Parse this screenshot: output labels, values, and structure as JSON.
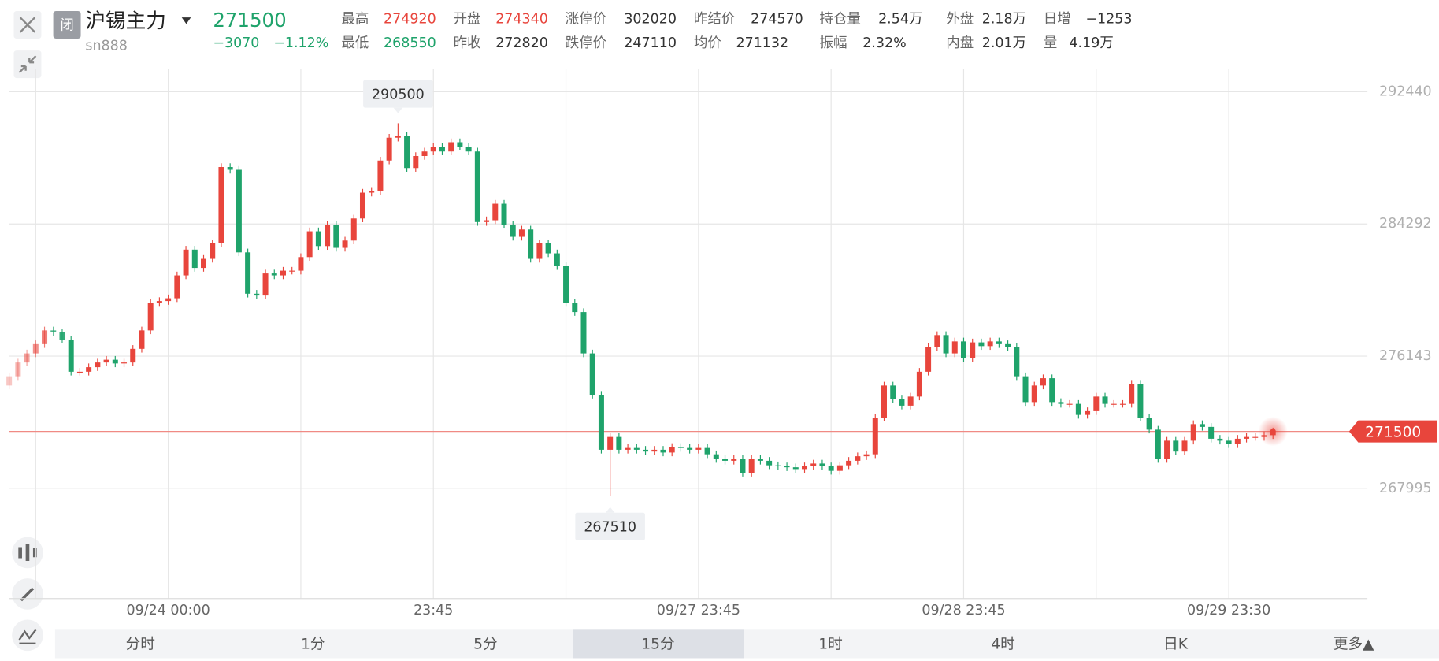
{
  "header": {
    "badge": "闭",
    "name": "沪锡主力",
    "code": "sn888",
    "change": "−3070",
    "change_pct": "−1.12%"
  },
  "stats": [
    [
      {
        "label": "最高",
        "value": "274920",
        "color": "#e8453c"
      },
      {
        "label": "开盘",
        "value": "274340",
        "color": "#e8453c"
      },
      {
        "label": "涨停价",
        "value": "302020"
      },
      {
        "label": "昨结价",
        "value": "274570"
      },
      {
        "label": "持仓量",
        "value": "2.54万"
      },
      {
        "label": "外盘",
        "value": "2.18万"
      },
      {
        "label": "日增",
        "value": "−1253"
      }
    ],
    [
      {
        "label": "最低",
        "value": "268550",
        "color": "#1fa36b"
      },
      {
        "label": "昨收",
        "value": "272820"
      },
      {
        "label": "跌停价",
        "value": "247110"
      },
      {
        "label": "均价",
        "value": "271132"
      },
      {
        "label": "振幅",
        "value": "2.32%"
      },
      {
        "label": "内盘",
        "value": "2.01万"
      },
      {
        "label": "量",
        "value": "4.19万"
      }
    ]
  ],
  "tabs": [
    "分时",
    "1分",
    "5分",
    "15分",
    "1时",
    "4时",
    "日K",
    "更多▲"
  ],
  "active_tab": 3,
  "chart_data": {
    "type": "candlestick",
    "up_color": "#e8453c",
    "down_color": "#1fa36b",
    "grid": true,
    "ylim": [
      261200,
      293850
    ],
    "yticks": [
      267995,
      276143,
      284292,
      292440
    ],
    "categories": [
      null,
      null,
      null,
      null,
      null,
      null,
      null,
      null,
      null,
      null,
      null,
      null,
      null,
      null,
      null,
      null,
      null,
      null,
      "09/24 00:00",
      null,
      null,
      null,
      null,
      null,
      null,
      null,
      null,
      null,
      null,
      null,
      null,
      null,
      null,
      null,
      null,
      null,
      null,
      null,
      null,
      null,
      null,
      null,
      null,
      null,
      null,
      null,
      null,
      null,
      "23:45",
      null,
      null,
      null,
      null,
      null,
      null,
      null,
      null,
      null,
      null,
      null,
      null,
      null,
      null,
      null,
      null,
      null,
      null,
      null,
      null,
      null,
      null,
      null,
      null,
      null,
      null,
      null,
      null,
      null,
      "09/27 23:45",
      null,
      null,
      null,
      null,
      null,
      null,
      null,
      null,
      null,
      null,
      null,
      null,
      null,
      null,
      null,
      null,
      null,
      null,
      null,
      null,
      null,
      null,
      null,
      null,
      null,
      null,
      null,
      null,
      null,
      "09/28 23:45",
      null,
      null,
      null,
      null,
      null,
      null,
      null,
      null,
      null,
      null,
      null,
      null,
      null,
      null,
      null,
      null,
      null,
      null,
      null,
      null,
      null,
      null,
      null,
      null,
      null,
      null,
      null,
      null,
      null,
      "09/29 23:30",
      null,
      null,
      null,
      null,
      null
    ],
    "open": [
      274330,
      274900,
      275750,
      276310,
      276880,
      277730,
      277610,
      277160,
      275180,
      275180,
      275460,
      275750,
      275920,
      275690,
      275750,
      276590,
      277730,
      279420,
      279540,
      279710,
      281120,
      282710,
      281580,
      282140,
      283100,
      287800,
      287630,
      282540,
      279990,
      279880,
      281240,
      281120,
      281410,
      281410,
      282250,
      283840,
      282930,
      284240,
      282820,
      283270,
      284630,
      286220,
      286330,
      288200,
      289610,
      289730,
      287740,
      288480,
      288760,
      289050,
      288760,
      289330,
      289050,
      288760,
      284410,
      284520,
      285540,
      284240,
      283500,
      283950,
      282140,
      283100,
      282480,
      281690,
      279420,
      278860,
      276310,
      273760,
      270370,
      271160,
      270370,
      270480,
      270370,
      270260,
      270370,
      270200,
      270540,
      270480,
      270370,
      270480,
      270090,
      269800,
      269690,
      269800,
      268950,
      269800,
      269690,
      269410,
      269350,
      269290,
      269180,
      269350,
      269520,
      269350,
      269070,
      269410,
      269690,
      269970,
      270090,
      272350,
      274330,
      273480,
      273090,
      273650,
      275180,
      276710,
      277440,
      276310,
      277050,
      276030,
      276990,
      276760,
      277050,
      276880,
      276710,
      274900,
      273310,
      274330,
      274780,
      273310,
      273200,
      273200,
      272520,
      272750,
      273650,
      273200,
      273200,
      273200,
      274440,
      272350,
      271610,
      269800,
      270930,
      270260,
      270930,
      271950,
      271780,
      271050,
      270930,
      270710,
      271050,
      271160,
      271160,
      271270
    ],
    "close": [
      274900,
      275750,
      276310,
      276880,
      277730,
      277610,
      277160,
      275180,
      275180,
      275460,
      275750,
      275920,
      275690,
      275750,
      276590,
      277730,
      279420,
      279540,
      279710,
      281120,
      282710,
      281580,
      282140,
      283100,
      287800,
      287630,
      282540,
      279990,
      279880,
      281240,
      281120,
      281410,
      281410,
      282250,
      283840,
      282930,
      284240,
      282820,
      283270,
      284630,
      286220,
      286330,
      288200,
      289610,
      289730,
      287740,
      288480,
      288760,
      289050,
      288760,
      289330,
      289050,
      288760,
      284410,
      284520,
      285540,
      284240,
      283500,
      283950,
      282140,
      283100,
      282480,
      281690,
      279420,
      278860,
      276310,
      273760,
      270370,
      271160,
      270370,
      270480,
      270370,
      270260,
      270370,
      270200,
      270540,
      270480,
      270370,
      270480,
      270090,
      269800,
      269690,
      269800,
      268950,
      269800,
      269690,
      269410,
      269350,
      269290,
      269180,
      269350,
      269520,
      269350,
      269070,
      269410,
      269690,
      269970,
      270090,
      272350,
      274330,
      273480,
      273090,
      273650,
      275180,
      276710,
      277440,
      276310,
      277050,
      276030,
      276990,
      276760,
      277050,
      276880,
      276710,
      274900,
      273310,
      274330,
      274780,
      273310,
      273200,
      273200,
      272520,
      272750,
      273650,
      273200,
      273200,
      273200,
      274440,
      272350,
      271610,
      269800,
      270930,
      270260,
      270930,
      271950,
      271780,
      271050,
      270930,
      270710,
      271050,
      271160,
      271160,
      271270,
      271500
    ],
    "high": [
      275130,
      275980,
      276540,
      277110,
      277960,
      277960,
      277840,
      277390,
      275410,
      275690,
      275980,
      276150,
      276150,
      275980,
      276820,
      277960,
      279650,
      279770,
      279940,
      281350,
      282940,
      282940,
      282370,
      283330,
      288030,
      288030,
      287860,
      282770,
      280220,
      281470,
      281470,
      281640,
      281640,
      282480,
      284070,
      284070,
      284470,
      284470,
      283500,
      284860,
      286450,
      286560,
      288430,
      289840,
      290500,
      289960,
      288710,
      288990,
      289280,
      289280,
      289560,
      289560,
      289280,
      288990,
      284750,
      285770,
      285770,
      284470,
      284180,
      284180,
      283330,
      283330,
      282710,
      281920,
      279650,
      279090,
      276540,
      273990,
      271390,
      271390,
      270710,
      270710,
      270600,
      270600,
      270600,
      270770,
      270770,
      270710,
      270710,
      270710,
      270320,
      270030,
      270030,
      270030,
      270030,
      270030,
      269920,
      269640,
      269580,
      269520,
      269580,
      269750,
      269750,
      269580,
      269640,
      269920,
      270200,
      270320,
      272580,
      274560,
      274560,
      273710,
      273880,
      275410,
      276940,
      277670,
      277670,
      277280,
      277280,
      277220,
      277220,
      277280,
      277280,
      277110,
      276940,
      275130,
      274560,
      275010,
      275010,
      273540,
      273430,
      273430,
      272980,
      273880,
      273880,
      273430,
      273430,
      274670,
      274670,
      272580,
      271840,
      271160,
      271160,
      271160,
      272180,
      272180,
      272010,
      271280,
      271160,
      271280,
      271390,
      271390,
      271500,
      271730
    ],
    "low": [
      274100,
      274670,
      275520,
      276080,
      276650,
      277380,
      276930,
      274950,
      274950,
      274950,
      275230,
      275520,
      275460,
      275460,
      275520,
      276360,
      277500,
      279190,
      279310,
      279480,
      280890,
      281350,
      281350,
      281910,
      282870,
      287400,
      282310,
      279760,
      279650,
      279650,
      280890,
      280890,
      281180,
      281180,
      282020,
      282700,
      282700,
      282590,
      282590,
      283040,
      284400,
      285990,
      286100,
      287970,
      289380,
      287510,
      287510,
      288250,
      288530,
      288530,
      288530,
      288820,
      288530,
      284180,
      284180,
      284290,
      284010,
      283270,
      283270,
      281910,
      281910,
      282250,
      281460,
      279190,
      278630,
      276080,
      273530,
      270140,
      267510,
      270140,
      270140,
      270140,
      270030,
      270030,
      269970,
      269970,
      270250,
      270140,
      270140,
      269860,
      269570,
      269460,
      269460,
      268720,
      268720,
      269460,
      269180,
      269120,
      269060,
      268950,
      268950,
      269120,
      269120,
      268840,
      268840,
      269180,
      269460,
      269740,
      269860,
      272120,
      273250,
      272860,
      272860,
      273420,
      274950,
      276480,
      276080,
      276080,
      275800,
      275800,
      276530,
      276530,
      276650,
      276480,
      274670,
      273080,
      273080,
      274100,
      273080,
      272970,
      272970,
      272290,
      272290,
      272520,
      272970,
      272970,
      272970,
      272970,
      272120,
      271380,
      269570,
      269570,
      270030,
      270030,
      270700,
      271550,
      270820,
      270700,
      270480,
      270480,
      270820,
      270930,
      270930,
      271040
    ]
  }
}
